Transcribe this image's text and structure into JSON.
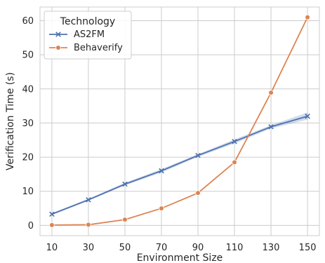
{
  "chart_data": {
    "type": "line",
    "title": "",
    "xlabel": "Environment Size",
    "ylabel": "Verification Time (s)",
    "x": [
      10,
      30,
      50,
      70,
      90,
      110,
      130,
      150
    ],
    "xlim": [
      3.5,
      156.5
    ],
    "ylim": [
      -3,
      64
    ],
    "yticks": [
      0,
      10,
      20,
      30,
      40,
      50,
      60
    ],
    "grid": true,
    "legend": {
      "title": "Technology",
      "placement": "top-left"
    },
    "series": [
      {
        "name": "AS2FM",
        "color": "#4c72b0",
        "marker": "x",
        "values": [
          3.3,
          7.5,
          12.1,
          16.0,
          20.5,
          24.6,
          28.9,
          32.0
        ],
        "ci_lower": [
          3.0,
          7.2,
          11.7,
          15.5,
          20.1,
          24.0,
          28.4,
          31.0
        ],
        "ci_upper": [
          3.6,
          7.8,
          12.5,
          16.5,
          20.9,
          25.2,
          29.4,
          33.1
        ]
      },
      {
        "name": "Behaverify",
        "color": "#dd8452",
        "marker": "circle",
        "values": [
          0.1,
          0.2,
          1.7,
          5.0,
          9.5,
          18.5,
          38.9,
          61.0
        ]
      }
    ]
  }
}
